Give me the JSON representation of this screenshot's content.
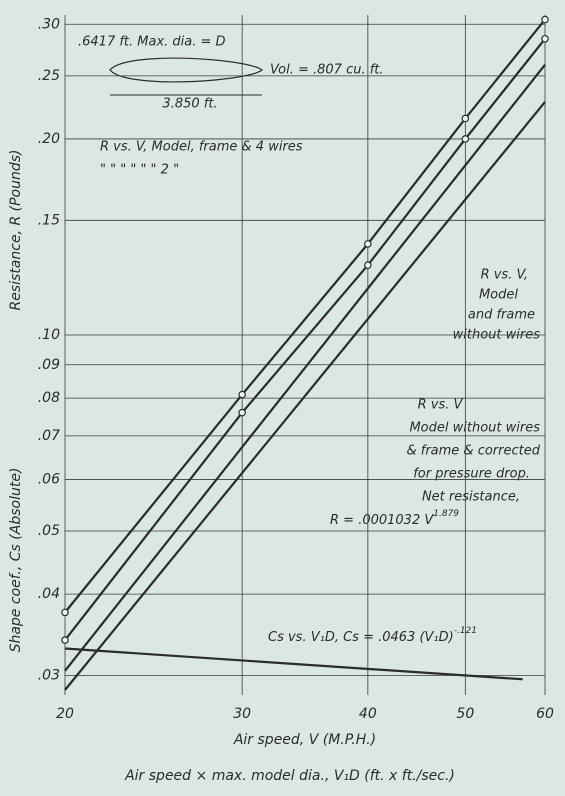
{
  "chart_data": {
    "type": "line",
    "xlog": true,
    "ylog": true,
    "grid": true,
    "xlim": [
      20,
      60
    ],
    "ylim": [
      0.028,
      0.31
    ],
    "xticks": [
      20,
      30,
      40,
      50,
      60
    ],
    "yticks": [
      {
        "value": 0.03,
        "label": ".03"
      },
      {
        "value": 0.04,
        "label": ".04"
      },
      {
        "value": 0.05,
        "label": ".05"
      },
      {
        "value": 0.06,
        "label": ".06"
      },
      {
        "value": 0.07,
        "label": ".07"
      },
      {
        "value": 0.08,
        "label": ".08"
      },
      {
        "value": 0.09,
        "label": ".09"
      },
      {
        "value": 0.1,
        "label": ".10"
      },
      {
        "value": 0.15,
        "label": ".15"
      },
      {
        "value": 0.2,
        "label": ".20"
      },
      {
        "value": 0.25,
        "label": ".25"
      },
      {
        "value": 0.3,
        "label": ".30"
      }
    ],
    "xlabel": "Air speed, V (M.P.H.)",
    "xlabel2": "Air speed × max. model dia., V₁D (ft. x ft./sec.)",
    "ylabel": "Resistance, R (Pounds)",
    "ylabel2": "Shape coef., Cs (Absolute)",
    "series": [
      {
        "color": "#2b2b2b",
        "markers": true,
        "x": [
          20,
          30,
          40,
          50,
          60
        ],
        "values": [
          0.0375,
          0.081,
          0.138,
          0.215,
          0.305
        ]
      },
      {
        "color": "#2b2b2b",
        "markers": true,
        "x": [
          20,
          30,
          40,
          50,
          60
        ],
        "values": [
          0.034,
          0.076,
          0.128,
          0.2,
          0.285
        ]
      },
      {
        "color": "#2b2b2b",
        "markers": false,
        "x": [
          20,
          60
        ],
        "values": [
          0.0305,
          0.26
        ]
      },
      {
        "color": "#2b2b2b",
        "markers": false,
        "x": [
          20,
          60
        ],
        "values": [
          0.0285,
          0.228
        ]
      },
      {
        "color": "#2b2b2b",
        "markers": false,
        "x": [
          20,
          57
        ],
        "values": [
          0.033,
          0.0296
        ]
      }
    ],
    "annotations": [
      ".6417 ft. Max. dia. = D",
      "Vol. = .807 cu. ft.",
      "3.850 ft.",
      "R vs. V, Model, frame & 4 wires",
      "\"    \"    \"       \"          \"    \" 2    \"",
      "R vs. V,",
      "Model",
      "and frame",
      "without wires",
      "R vs. V",
      "Model without wires",
      "& frame & corrected",
      "for pressure drop.",
      "Net resistance,",
      "R = .0001032 V",
      "1.879",
      "Cs vs. V₁D,  Cs = .0463 (V₁D)",
      "-.121"
    ]
  }
}
